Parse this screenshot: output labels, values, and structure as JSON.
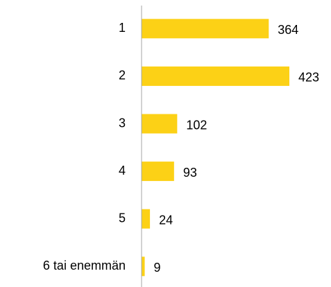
{
  "chart_data": {
    "type": "bar",
    "orientation": "horizontal",
    "categories": [
      "1",
      "2",
      "3",
      "4",
      "5",
      "6 tai enemmän"
    ],
    "values": [
      364,
      423,
      102,
      93,
      24,
      9
    ],
    "color": "#fcd116"
  }
}
